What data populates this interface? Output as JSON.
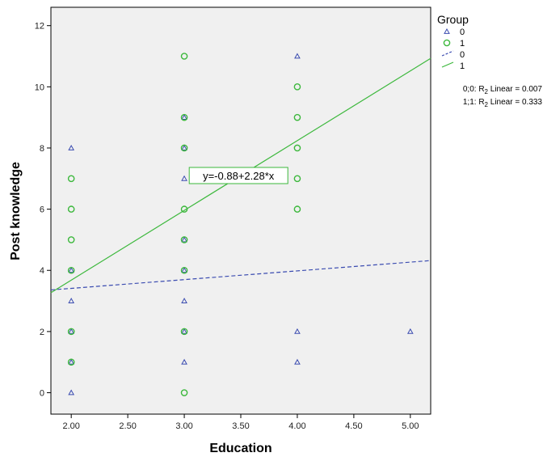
{
  "chart_data": {
    "type": "scatter",
    "xlabel": "Education",
    "ylabel": "Post knowledge",
    "xlim": [
      1.82,
      5.18
    ],
    "ylim": [
      -0.7,
      12.6
    ],
    "x_ticks": [
      2.0,
      2.5,
      3.0,
      3.5,
      4.0,
      4.5,
      5.0
    ],
    "x_tick_labels": [
      "2.00",
      "2.50",
      "3.00",
      "3.50",
      "4.00",
      "4.50",
      "5.00"
    ],
    "y_ticks": [
      0,
      2,
      4,
      6,
      8,
      10,
      12
    ],
    "y_tick_labels": [
      "0",
      "2",
      "4",
      "6",
      "8",
      "10",
      "12"
    ],
    "grid": false,
    "background": "#f0f0f0",
    "series": [
      {
        "name": "0",
        "marker": "triangle",
        "color": "#3a4bb0",
        "points": [
          [
            2,
            0
          ],
          [
            2,
            1
          ],
          [
            2,
            2
          ],
          [
            2,
            3
          ],
          [
            2,
            4
          ],
          [
            2,
            8
          ],
          [
            3,
            1
          ],
          [
            3,
            2
          ],
          [
            3,
            3
          ],
          [
            3,
            4
          ],
          [
            3,
            5
          ],
          [
            3,
            7
          ],
          [
            3,
            8
          ],
          [
            3,
            9
          ],
          [
            4,
            1
          ],
          [
            4,
            2
          ],
          [
            4,
            11
          ],
          [
            5,
            2
          ]
        ]
      },
      {
        "name": "1",
        "marker": "circle",
        "color": "#3cb83c",
        "points": [
          [
            2,
            1
          ],
          [
            2,
            2
          ],
          [
            2,
            4
          ],
          [
            2,
            5
          ],
          [
            2,
            6
          ],
          [
            2,
            7
          ],
          [
            3,
            0
          ],
          [
            3,
            2
          ],
          [
            3,
            4
          ],
          [
            3,
            5
          ],
          [
            3,
            6
          ],
          [
            3,
            8
          ],
          [
            3,
            9
          ],
          [
            3,
            11
          ],
          [
            4,
            6
          ],
          [
            4,
            7
          ],
          [
            4,
            8
          ],
          [
            4,
            9
          ],
          [
            4,
            10
          ]
        ]
      }
    ],
    "fit_lines": [
      {
        "name": "0",
        "style": "dashed",
        "color": "#3a4bb0",
        "x": [
          1.82,
          5.18
        ],
        "y": [
          3.36,
          4.32
        ]
      },
      {
        "name": "1",
        "style": "solid",
        "color": "#3cb83c",
        "x": [
          1.82,
          5.18
        ],
        "y": [
          3.27,
          10.93
        ]
      }
    ],
    "equation_label": {
      "text": "y=-0.88+2.28*x",
      "x": 3.48,
      "y": 7.1
    },
    "legend": {
      "title": "Group",
      "placement": "right",
      "entries": [
        "0",
        "1",
        "0",
        "1"
      ]
    },
    "fit_stats": [
      {
        "prefix": "0;0: R",
        "sub": "2",
        "suffix": " Linear = 0.007"
      },
      {
        "prefix": "1;1: R",
        "sub": "2",
        "suffix": " Linear = 0.333"
      }
    ]
  }
}
